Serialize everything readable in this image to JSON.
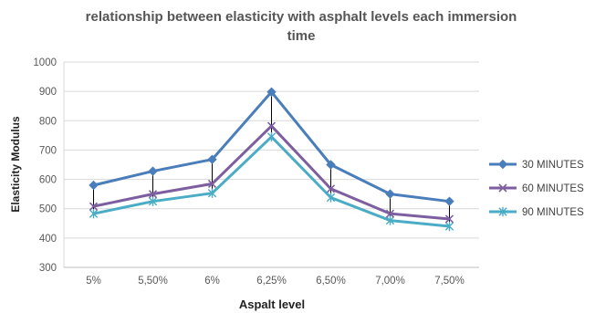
{
  "chart_data": {
    "type": "line",
    "title_lines": [
      "relationship between elasticity with asphalt levels each immersion",
      "time"
    ],
    "xlabel": "Aspalt level",
    "ylabel": "Elasticity Modulus",
    "categories": [
      "5%",
      "5,50%",
      "6%",
      "6,25%",
      "6,50%",
      "7,00%",
      "7,50%"
    ],
    "ylim": [
      300,
      1000
    ],
    "yticks": [
      300,
      400,
      500,
      600,
      700,
      800,
      900,
      1000
    ],
    "grid": true,
    "legend_position": "right",
    "drop_lines": true,
    "series": [
      {
        "name": "30 MINUTES",
        "color": "#4a7ebb",
        "marker": "diamond",
        "values": [
          580,
          628,
          668,
          898,
          650,
          550,
          525
        ]
      },
      {
        "name": "60 MINUTES",
        "color": "#7d5fa0",
        "marker": "x",
        "values": [
          508,
          550,
          585,
          782,
          568,
          483,
          465
        ]
      },
      {
        "name": "90 MINUTES",
        "color": "#4bacc6",
        "marker": "asterisk",
        "values": [
          483,
          525,
          553,
          745,
          538,
          460,
          440
        ]
      }
    ]
  }
}
